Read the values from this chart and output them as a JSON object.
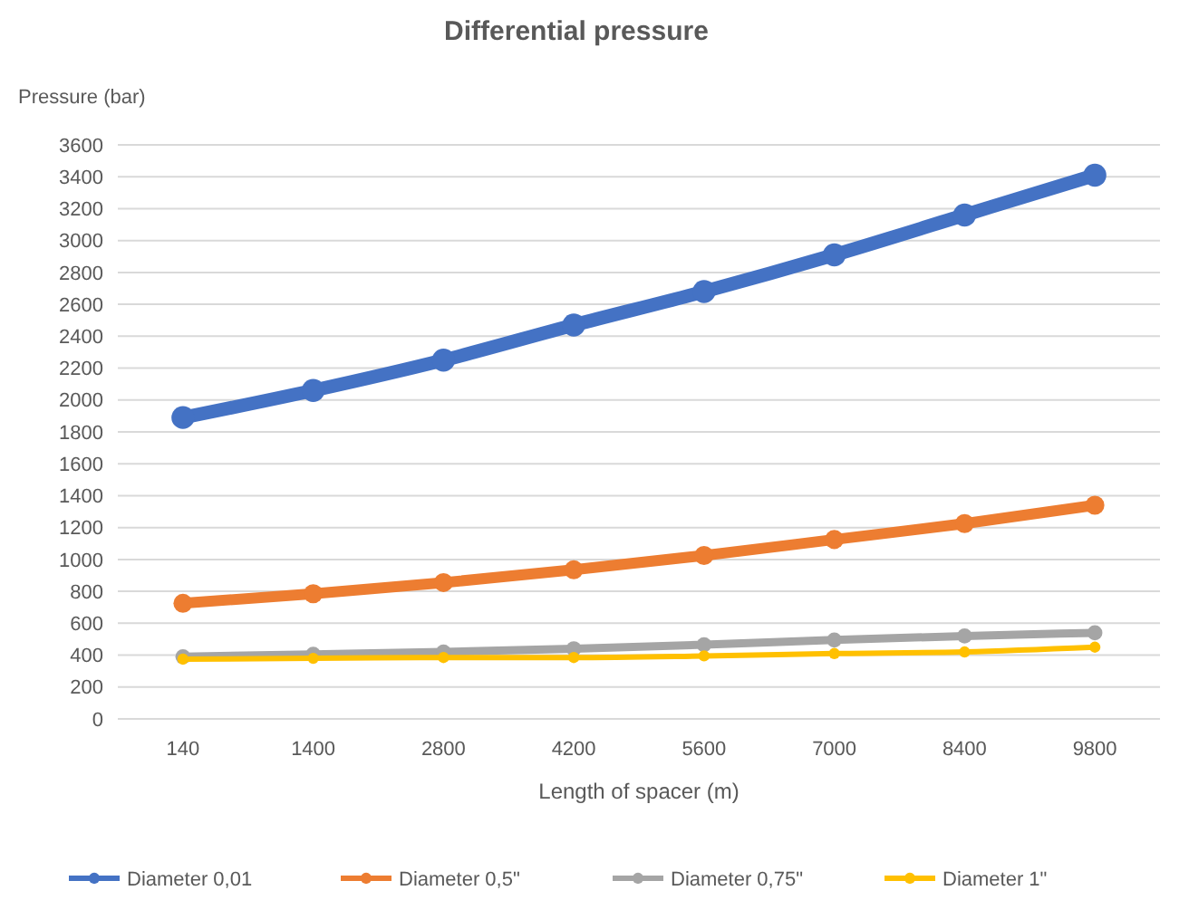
{
  "chart_data": {
    "type": "line",
    "title": "Differential pressure",
    "xlabel": "Length of spacer (m)",
    "ylabel": "Pressure (bar)",
    "categories": [
      "140",
      "1400",
      "2800",
      "4200",
      "5600",
      "7000",
      "8400",
      "9800"
    ],
    "series": [
      {
        "name": "Diameter 0,01",
        "color": "#4472c4",
        "values": [
          1890,
          2060,
          2250,
          2470,
          2680,
          2910,
          3160,
          3410
        ]
      },
      {
        "name": "Diameter 0,5\"",
        "color": "#ed7d31",
        "values": [
          725,
          785,
          855,
          935,
          1025,
          1125,
          1225,
          1340
        ]
      },
      {
        "name": "Diameter 0,75\"",
        "color": "#a5a5a5",
        "values": [
          390,
          405,
          420,
          440,
          465,
          495,
          520,
          540
        ]
      },
      {
        "name": "Diameter 1\"",
        "color": "#ffc000",
        "values": [
          375,
          380,
          385,
          385,
          395,
          410,
          420,
          450
        ]
      }
    ],
    "ylim": [
      0,
      3600
    ],
    "yticks": [
      0,
      200,
      400,
      600,
      800,
      1000,
      1200,
      1400,
      1600,
      1800,
      2000,
      2200,
      2400,
      2600,
      2800,
      3000,
      3200,
      3400,
      3600
    ],
    "grid": "y",
    "legend": "bottom",
    "marker": "circle",
    "line_style": "solid"
  }
}
